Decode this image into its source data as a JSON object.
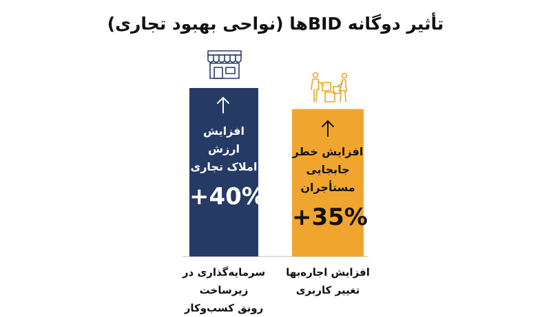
{
  "chart_data": {
    "type": "bar",
    "title": "تأثیر دوگانه BIDها (نواحی بهبود تجاری)",
    "categories": [
      [
        "سرمایه‌گذاری در زیرساخت",
        "رونق کسب‌وکار"
      ],
      [
        "افزایش اجاره‌بها",
        "تغییر کاربری"
      ]
    ],
    "bar_labels": [
      [
        "افزایش ارزش",
        "املاک تجاری"
      ],
      [
        "افزایش خطر",
        "جابجایی مستأجران"
      ]
    ],
    "value_labels": [
      "+40%",
      "+35%"
    ],
    "values": [
      40,
      35
    ],
    "bar_colors": [
      "#263a66",
      "#f0a62e"
    ],
    "bar_text_colors": [
      "#ffffff",
      "#111111"
    ],
    "icons": [
      "storefront-icon",
      "people-moving-boxes-icon"
    ],
    "icon_colors": [
      "#263a66",
      "#e8a52a"
    ],
    "ylim": [
      0,
      40
    ],
    "xlabel": "",
    "ylabel": ""
  }
}
